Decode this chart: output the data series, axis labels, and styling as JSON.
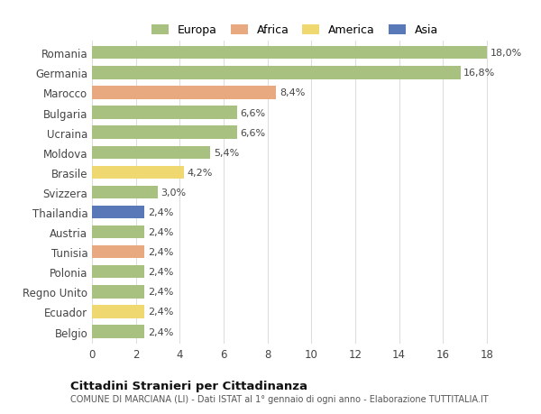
{
  "categories": [
    "Romania",
    "Germania",
    "Marocco",
    "Bulgaria",
    "Ucraina",
    "Moldova",
    "Brasile",
    "Svizzera",
    "Thailandia",
    "Austria",
    "Tunisia",
    "Polonia",
    "Regno Unito",
    "Ecuador",
    "Belgio"
  ],
  "values": [
    18.0,
    16.8,
    8.4,
    6.6,
    6.6,
    5.4,
    4.2,
    3.0,
    2.4,
    2.4,
    2.4,
    2.4,
    2.4,
    2.4,
    2.4
  ],
  "labels": [
    "18,0%",
    "16,8%",
    "8,4%",
    "6,6%",
    "6,6%",
    "5,4%",
    "4,2%",
    "3,0%",
    "2,4%",
    "2,4%",
    "2,4%",
    "2,4%",
    "2,4%",
    "2,4%",
    "2,4%"
  ],
  "colors": [
    "#a8c080",
    "#a8c080",
    "#e8a880",
    "#a8c080",
    "#a8c080",
    "#a8c080",
    "#f0d870",
    "#a8c080",
    "#5878b8",
    "#a8c080",
    "#e8a880",
    "#a8c080",
    "#a8c080",
    "#f0d870",
    "#a8c080"
  ],
  "legend_labels": [
    "Europa",
    "Africa",
    "America",
    "Asia"
  ],
  "legend_colors": [
    "#a8c080",
    "#e8a880",
    "#f0d870",
    "#5878b8"
  ],
  "title": "Cittadini Stranieri per Cittadinanza",
  "subtitle": "COMUNE DI MARCIANA (LI) - Dati ISTAT al 1° gennaio di ogni anno - Elaborazione TUTTITALIA.IT",
  "xlim": [
    0,
    18
  ],
  "xticks": [
    0,
    2,
    4,
    6,
    8,
    10,
    12,
    14,
    16,
    18
  ],
  "bg_color": "#ffffff",
  "grid_color": "#dddddd"
}
